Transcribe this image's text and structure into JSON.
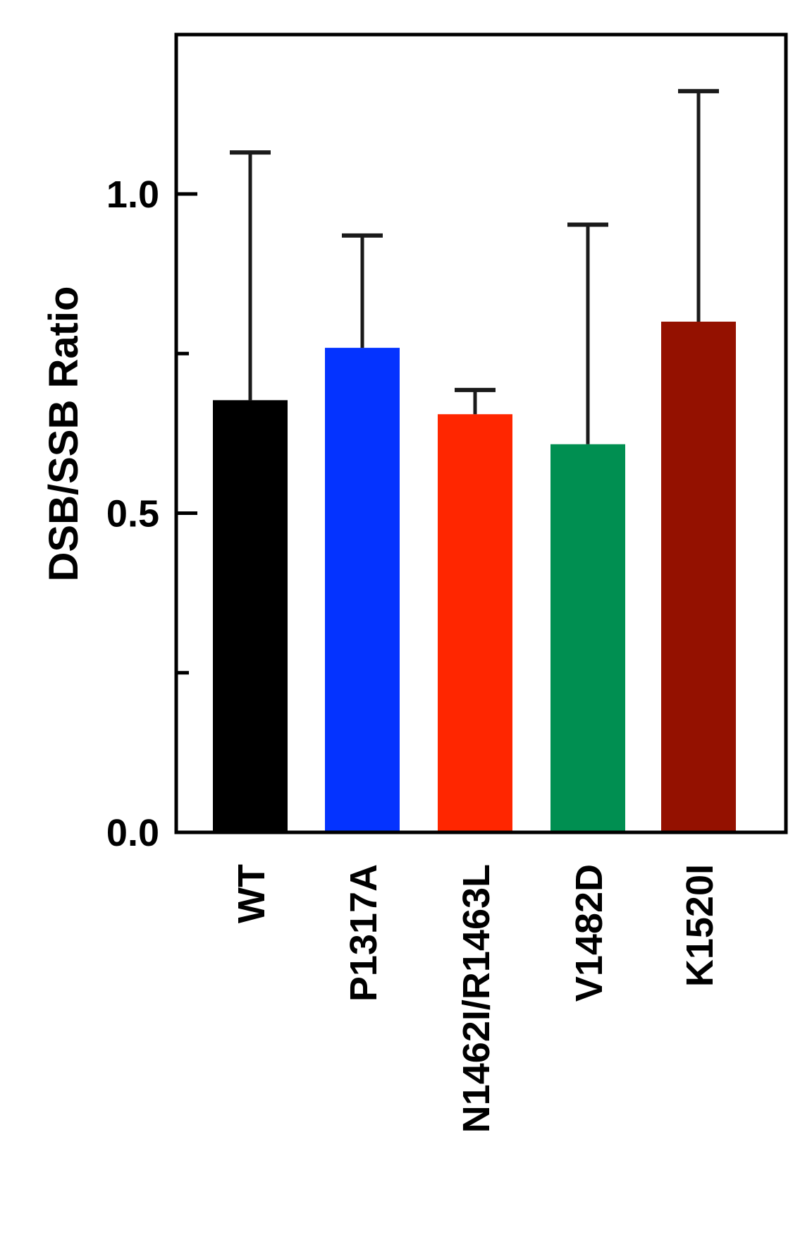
{
  "chart_data": {
    "type": "bar",
    "title": "",
    "xlabel": "",
    "ylabel": "DSB/SSB Ratio",
    "ylim": [
      0,
      1.25
    ],
    "yticks": [
      0.0,
      0.25,
      0.5,
      0.75,
      1.0
    ],
    "ytick_labels": [
      "0.0",
      "",
      "0.5",
      "",
      "1.0"
    ],
    "grid": false,
    "legend": null,
    "categories": [
      "WT",
      "P1317A",
      "N1462I/R1463L",
      "V1482D",
      "K1520I"
    ],
    "values": [
      0.677,
      0.759,
      0.655,
      0.608,
      0.8
    ],
    "error_upper": [
      1.065,
      0.935,
      0.693,
      0.952,
      1.161
    ],
    "error_plus": [
      0.388,
      0.176,
      0.038,
      0.344,
      0.361
    ],
    "colors": [
      "#000000",
      "#0433FF",
      "#FF2600",
      "#008F51",
      "#941100"
    ]
  }
}
